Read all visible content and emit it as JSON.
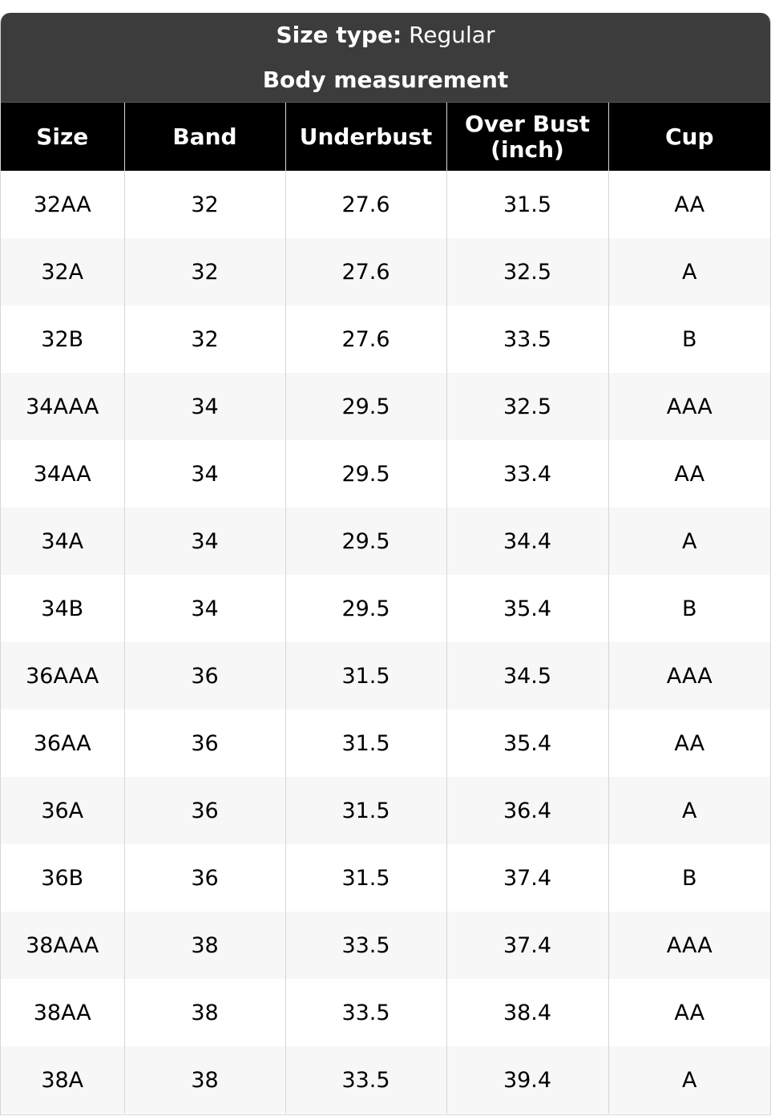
{
  "caption": {
    "size_type_label": "Size type:",
    "size_type_value": "Regular",
    "subtitle": "Body measurement"
  },
  "colors": {
    "caption_bg": "#3c3c3c",
    "header_bg": "#000000",
    "stripe": "#f7f7f7",
    "border": "#d6d6d6"
  },
  "columns": [
    "Size",
    "Band",
    "Underbust",
    "Over Bust (inch)",
    "Cup"
  ],
  "rows": [
    [
      "32AA",
      "32",
      "27.6",
      "31.5",
      "AA"
    ],
    [
      "32A",
      "32",
      "27.6",
      "32.5",
      "A"
    ],
    [
      "32B",
      "32",
      "27.6",
      "33.5",
      "B"
    ],
    [
      "34AAA",
      "34",
      "29.5",
      "32.5",
      "AAA"
    ],
    [
      "34AA",
      "34",
      "29.5",
      "33.4",
      "AA"
    ],
    [
      "34A",
      "34",
      "29.5",
      "34.4",
      "A"
    ],
    [
      "34B",
      "34",
      "29.5",
      "35.4",
      "B"
    ],
    [
      "36AAA",
      "36",
      "31.5",
      "34.5",
      "AAA"
    ],
    [
      "36AA",
      "36",
      "31.5",
      "35.4",
      "AA"
    ],
    [
      "36A",
      "36",
      "31.5",
      "36.4",
      "A"
    ],
    [
      "36B",
      "36",
      "31.5",
      "37.4",
      "B"
    ],
    [
      "38AAA",
      "38",
      "33.5",
      "37.4",
      "AAA"
    ],
    [
      "38AA",
      "38",
      "33.5",
      "38.4",
      "AA"
    ],
    [
      "38A",
      "38",
      "33.5",
      "39.4",
      "A"
    ]
  ]
}
